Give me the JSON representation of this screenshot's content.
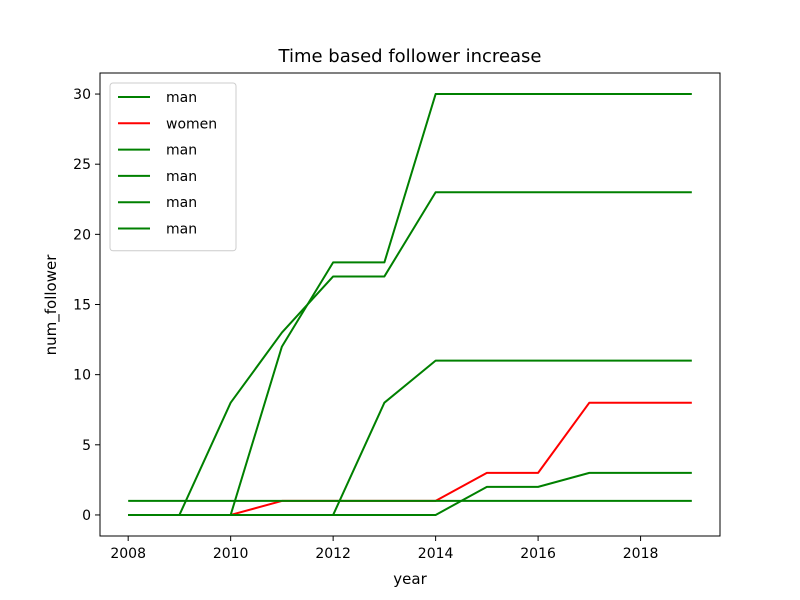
{
  "chart_data": {
    "type": "line",
    "title": "Time based follower increase",
    "xlabel": "year",
    "ylabel": "num_follower",
    "xlim": [
      2007.45,
      2019.55
    ],
    "ylim": [
      -1.5,
      31.5
    ],
    "xticks": [
      2008,
      2010,
      2012,
      2014,
      2016,
      2018
    ],
    "yticks": [
      0,
      5,
      10,
      15,
      20,
      25,
      30
    ],
    "grid": false,
    "legend_position": "upper-left",
    "x": [
      2008,
      2009,
      2010,
      2011,
      2012,
      2013,
      2014,
      2015,
      2016,
      2017,
      2018,
      2019
    ],
    "series": [
      {
        "name": "man",
        "color": "#008000",
        "values": [
          0,
          0,
          8,
          13,
          17,
          17,
          23,
          23,
          23,
          23,
          23,
          23
        ]
      },
      {
        "name": "women",
        "color": "#ff0000",
        "values": [
          0,
          0,
          0,
          1,
          1,
          1,
          1,
          3,
          3,
          8,
          8,
          8
        ]
      },
      {
        "name": "man",
        "color": "#008000",
        "values": [
          0,
          0,
          0,
          12,
          18,
          18,
          30,
          30,
          30,
          30,
          30,
          30
        ]
      },
      {
        "name": "man",
        "color": "#008000",
        "values": [
          1,
          1,
          1,
          1,
          1,
          1,
          1,
          1,
          1,
          1,
          1,
          1
        ]
      },
      {
        "name": "man",
        "color": "#008000",
        "values": [
          0,
          0,
          0,
          0,
          0,
          0,
          0,
          2,
          2,
          3,
          3,
          3
        ]
      },
      {
        "name": "man",
        "color": "#008000",
        "values": [
          0,
          0,
          0,
          0,
          0,
          8,
          11,
          11,
          11,
          11,
          11,
          11
        ]
      }
    ]
  }
}
